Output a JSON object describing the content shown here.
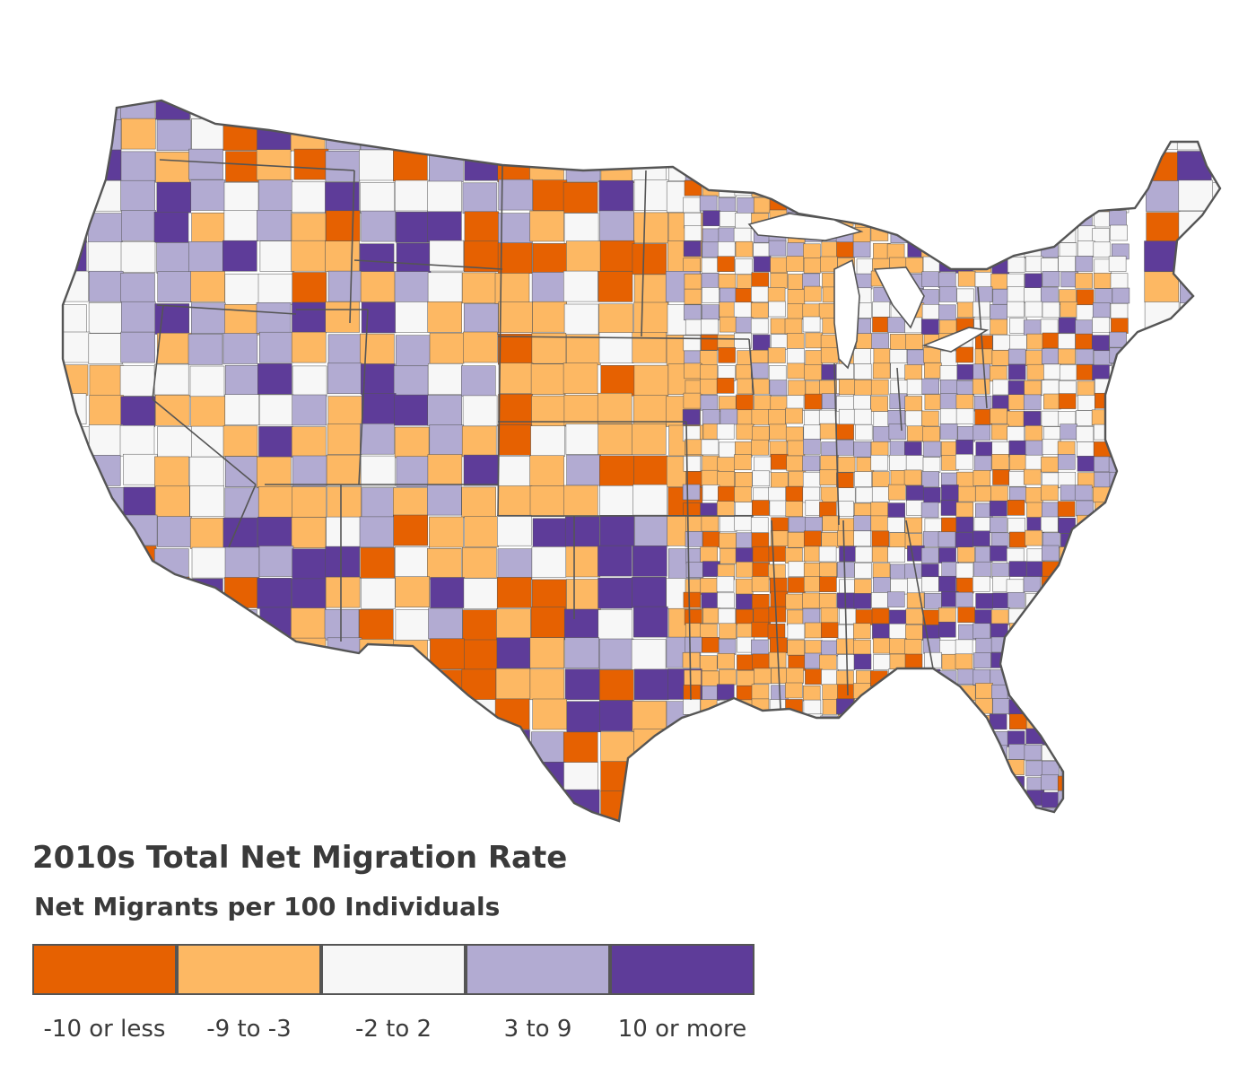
{
  "legend": {
    "title": "2010s Total Net Migration Rate",
    "subtitle": "Net Migrants per 100 Individuals",
    "bins": [
      {
        "label": "-10 or less",
        "color": "#e66101"
      },
      {
        "label": "-9 to -3",
        "color": "#fdb863"
      },
      {
        "label": "-2 to 2",
        "color": "#f7f7f7"
      },
      {
        "label": "3 to 9",
        "color": "#b2abd2"
      },
      {
        "label": "10 or more",
        "color": "#5e3c99"
      }
    ]
  },
  "map": {
    "region": "contiguous-united-states",
    "unit": "counties",
    "border_color": "#555555"
  }
}
